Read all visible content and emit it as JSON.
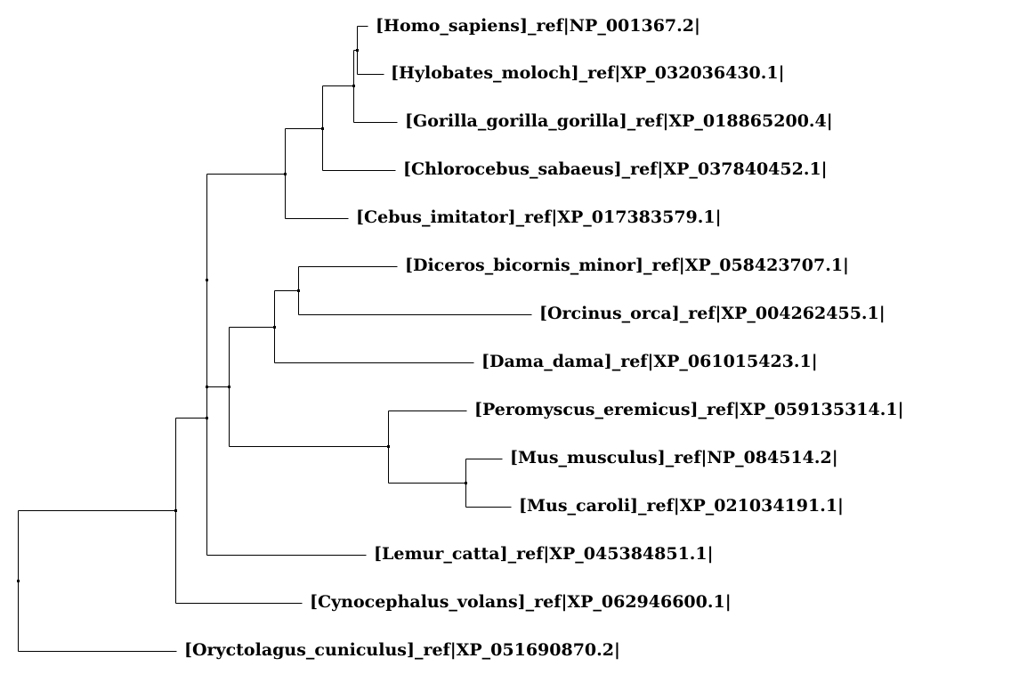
{
  "tree": {
    "line_color": "#000000",
    "background": "#ffffff",
    "leaves": [
      {
        "id": "homo",
        "label": "[Homo_sapiens]_ref|NP_001367.2|"
      },
      {
        "id": "hylobates",
        "label": "[Hylobates_moloch]_ref|XP_032036430.1|"
      },
      {
        "id": "gorilla",
        "label": "[Gorilla_gorilla_gorilla]_ref|XP_018865200.4|"
      },
      {
        "id": "chlorocebus",
        "label": "[Chlorocebus_sabaeus]_ref|XP_037840452.1|"
      },
      {
        "id": "cebus",
        "label": "[Cebus_imitator]_ref|XP_017383579.1|"
      },
      {
        "id": "diceros",
        "label": "[Diceros_bicornis_minor]_ref|XP_058423707.1|"
      },
      {
        "id": "orcinus",
        "label": "[Orcinus_orca]_ref|XP_004262455.1|"
      },
      {
        "id": "dama",
        "label": "[Dama_dama]_ref|XP_061015423.1|"
      },
      {
        "id": "peromyscus",
        "label": "[Peromyscus_eremicus]_ref|XP_059135314.1|"
      },
      {
        "id": "mus-musculus",
        "label": "[Mus_musculus]_ref|NP_084514.2|"
      },
      {
        "id": "mus-caroli",
        "label": "[Mus_caroli]_ref|XP_021034191.1|"
      },
      {
        "id": "lemur",
        "label": "[Lemur_catta]_ref|XP_045384851.1|"
      },
      {
        "id": "cynocephalus",
        "label": "[Cynocephalus_volans]_ref|XP_062946600.1|"
      },
      {
        "id": "oryctolagus",
        "label": "[Oryctolagus_cuniculus]_ref|XP_051690870.2|"
      }
    ]
  }
}
